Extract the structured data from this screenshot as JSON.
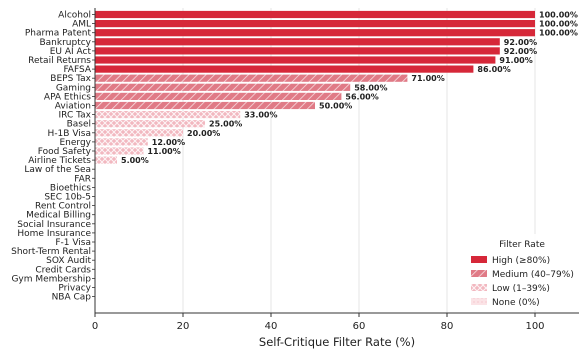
{
  "chart_data": {
    "type": "bar",
    "orientation": "horizontal",
    "categories": [
      "Alcohol",
      "AML",
      "Pharma Patent",
      "Bankruptcy",
      "EU AI Act",
      "Retail Returns",
      "FAFSA",
      "BEPS Tax",
      "Gaming",
      "APA Ethics",
      "Aviation",
      "IRC Tax",
      "Basel",
      "H-1B Visa",
      "Energy",
      "Food Safety",
      "Airline Tickets",
      "Law of the Sea",
      "FAR",
      "Bioethics",
      "SEC 10b-5",
      "Rent Control",
      "Medical Billing",
      "Social Insurance",
      "Home Insurance",
      "F-1 Visa",
      "Short-Term Rental",
      "SOX Audit",
      "Credit Cards",
      "Gym Membership",
      "Privacy",
      "NBA Cap"
    ],
    "values": [
      100,
      100,
      100,
      92,
      92,
      91,
      86,
      71,
      58,
      56,
      50,
      33,
      25,
      20,
      12,
      11,
      5,
      0,
      0,
      0,
      0,
      0,
      0,
      0,
      0,
      0,
      0,
      0,
      0,
      0,
      0,
      0
    ],
    "value_labels": [
      "100.00%",
      "100.00%",
      "100.00%",
      "92.00%",
      "92.00%",
      "91.00%",
      "86.00%",
      "71.00%",
      "58.00%",
      "56.00%",
      "50.00%",
      "33.00%",
      "25.00%",
      "20.00%",
      "12.00%",
      "11.00%",
      "5.00%",
      "",
      "",
      "",
      "",
      "",
      "",
      "",
      "",
      "",
      "",
      "",
      "",
      "",
      "",
      ""
    ],
    "xlabel": "Self-Critique Filter Rate (%)",
    "ylabel": "",
    "xlim": [
      0,
      110
    ],
    "xticks": [
      "0",
      "20",
      "40",
      "60",
      "80",
      "100"
    ],
    "grid": "x",
    "legend": {
      "title": "Filter Rate",
      "position": "bottom-right",
      "entries": [
        {
          "label": "High (≥80%)",
          "color": "#d62839"
        },
        {
          "label": "Medium (40–79%)",
          "color": "#e07a86"
        },
        {
          "label": "Low (1–39%)",
          "color": "#f2b8c0"
        },
        {
          "label": "None (0%)",
          "color": "#fbe3e6"
        }
      ]
    }
  }
}
